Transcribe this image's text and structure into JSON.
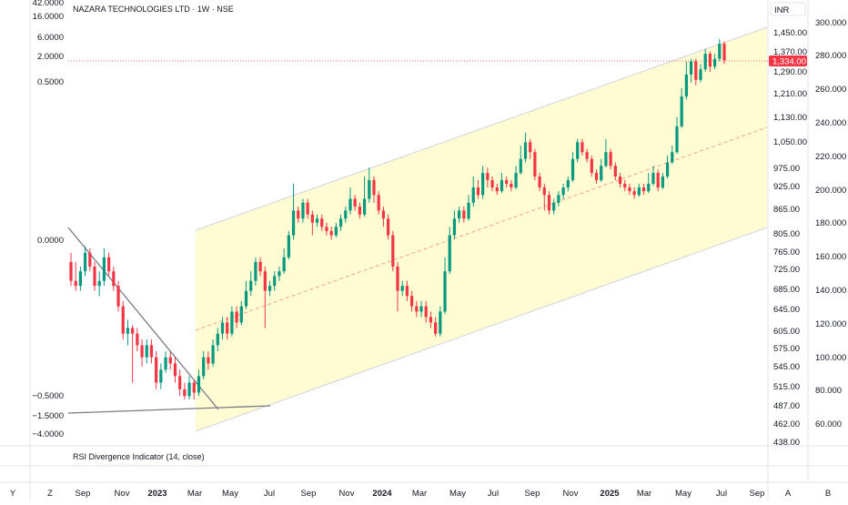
{
  "header": {
    "title": "NAZARA TECHNOLOGIES LTD · 1W · NSE"
  },
  "currency": "INR",
  "last_price_label": "1,334.00",
  "indicator": {
    "label": "RSI Divergence Indicator (14, close)"
  },
  "left_scale": [
    "42.0000",
    "16.0000",
    "6.0000",
    "2.0000",
    "0.5000",
    "0.0000",
    "−0.5000",
    "−1.5000",
    "−4.0000"
  ],
  "right_scale_price": [
    "1,450.00",
    "1,370.00",
    "1,290.00",
    "1,210.00",
    "1,130.00",
    "1,050.00",
    "975.00",
    "925.00",
    "865.00",
    "805.00",
    "765.00",
    "725.00",
    "685.00",
    "645.00",
    "605.00",
    "575.00",
    "545.00",
    "515.00",
    "487.00",
    "462.00",
    "438.00"
  ],
  "right_scale_secondary": [
    "300.000",
    "280.000",
    "260.000",
    "240.000",
    "220.000",
    "200.000",
    "180.000",
    "160.000",
    "140.000",
    "120.000",
    "100.000",
    "80.000",
    "60.000"
  ],
  "time_labels": [
    "Sep",
    "Nov",
    "2023",
    "Mar",
    "May",
    "Jul",
    "Sep",
    "Nov",
    "2024",
    "Mar",
    "May",
    "Jul",
    "Sep",
    "Nov",
    "2025",
    "Mar",
    "May",
    "Jul",
    "Sep"
  ],
  "bottom_buttons": [
    "Y",
    "Z",
    "A",
    "B"
  ],
  "colors": {
    "up": "#089981",
    "down": "#f23645",
    "channel_fill": "#fff9c4",
    "channel_line": "#d1d4dc",
    "midline": "#f7a08a",
    "last_price_bg": "#f23645"
  },
  "chart_data": {
    "type": "candlestick",
    "interval": "1W",
    "y_scale": "log",
    "ylim": [
      438,
      1500
    ],
    "candles": [
      [
        740,
        700,
        760,
        690
      ],
      [
        700,
        690,
        740,
        680
      ],
      [
        690,
        720,
        730,
        680
      ],
      [
        720,
        760,
        775,
        710
      ],
      [
        760,
        730,
        770,
        720
      ],
      [
        730,
        690,
        740,
        680
      ],
      [
        690,
        700,
        720,
        670
      ],
      [
        700,
        750,
        770,
        690
      ],
      [
        750,
        720,
        760,
        710
      ],
      [
        720,
        690,
        730,
        680
      ],
      [
        690,
        650,
        700,
        640
      ],
      [
        650,
        600,
        660,
        590
      ],
      [
        600,
        610,
        625,
        580
      ],
      [
        610,
        600,
        615,
        520
      ],
      [
        600,
        580,
        610,
        570
      ],
      [
        580,
        560,
        590,
        545
      ],
      [
        560,
        580,
        590,
        550
      ],
      [
        580,
        560,
        590,
        550
      ],
      [
        560,
        520,
        570,
        510
      ],
      [
        520,
        540,
        550,
        510
      ],
      [
        540,
        560,
        570,
        535
      ],
      [
        560,
        550,
        570,
        540
      ],
      [
        550,
        530,
        560,
        520
      ],
      [
        530,
        510,
        540,
        500
      ],
      [
        510,
        500,
        520,
        495
      ],
      [
        500,
        520,
        530,
        495
      ],
      [
        520,
        505,
        525,
        495
      ],
      [
        505,
        530,
        540,
        500
      ],
      [
        530,
        560,
        570,
        525
      ],
      [
        560,
        550,
        570,
        540
      ],
      [
        550,
        580,
        590,
        545
      ],
      [
        580,
        600,
        610,
        570
      ],
      [
        600,
        620,
        630,
        590
      ],
      [
        620,
        600,
        630,
        590
      ],
      [
        600,
        640,
        650,
        595
      ],
      [
        640,
        620,
        650,
        610
      ],
      [
        620,
        650,
        660,
        615
      ],
      [
        650,
        680,
        700,
        645
      ],
      [
        680,
        700,
        720,
        670
      ],
      [
        700,
        740,
        750,
        690
      ],
      [
        740,
        720,
        750,
        710
      ],
      [
        720,
        680,
        730,
        610
      ],
      [
        680,
        690,
        700,
        670
      ],
      [
        690,
        710,
        720,
        680
      ],
      [
        710,
        720,
        730,
        700
      ],
      [
        720,
        750,
        770,
        715
      ],
      [
        750,
        800,
        810,
        745
      ],
      [
        800,
        860,
        930,
        790
      ],
      [
        860,
        840,
        870,
        830
      ],
      [
        840,
        880,
        890,
        830
      ],
      [
        880,
        850,
        890,
        840
      ],
      [
        850,
        830,
        860,
        800
      ],
      [
        830,
        840,
        850,
        820
      ],
      [
        840,
        820,
        850,
        810
      ],
      [
        820,
        810,
        830,
        800
      ],
      [
        810,
        800,
        820,
        790
      ],
      [
        800,
        820,
        830,
        795
      ],
      [
        820,
        840,
        850,
        810
      ],
      [
        840,
        860,
        870,
        830
      ],
      [
        860,
        890,
        920,
        850
      ],
      [
        890,
        870,
        900,
        860
      ],
      [
        870,
        850,
        880,
        840
      ],
      [
        850,
        890,
        950,
        845
      ],
      [
        890,
        940,
        975,
        880
      ],
      [
        940,
        900,
        950,
        880
      ],
      [
        900,
        860,
        910,
        850
      ],
      [
        860,
        840,
        870,
        820
      ],
      [
        840,
        800,
        850,
        790
      ],
      [
        800,
        730,
        810,
        720
      ],
      [
        730,
        680,
        740,
        640
      ],
      [
        680,
        690,
        700,
        670
      ],
      [
        690,
        670,
        700,
        660
      ],
      [
        670,
        650,
        680,
        640
      ],
      [
        650,
        640,
        660,
        630
      ],
      [
        640,
        650,
        660,
        630
      ],
      [
        650,
        630,
        660,
        620
      ],
      [
        630,
        620,
        640,
        610
      ],
      [
        620,
        600,
        630,
        595
      ],
      [
        600,
        640,
        650,
        595
      ],
      [
        640,
        720,
        750,
        635
      ],
      [
        720,
        800,
        820,
        715
      ],
      [
        800,
        840,
        860,
        790
      ],
      [
        840,
        860,
        870,
        830
      ],
      [
        860,
        840,
        870,
        830
      ],
      [
        840,
        880,
        900,
        835
      ],
      [
        880,
        920,
        950,
        870
      ],
      [
        920,
        900,
        940,
        890
      ],
      [
        900,
        960,
        980,
        890
      ],
      [
        960,
        940,
        975,
        920
      ],
      [
        940,
        920,
        950,
        910
      ],
      [
        920,
        910,
        930,
        900
      ],
      [
        910,
        940,
        960,
        905
      ],
      [
        940,
        930,
        950,
        920
      ],
      [
        930,
        920,
        940,
        910
      ],
      [
        920,
        960,
        980,
        915
      ],
      [
        960,
        1000,
        1040,
        955
      ],
      [
        1000,
        1050,
        1080,
        990
      ],
      [
        1050,
        1020,
        1060,
        1000
      ],
      [
        1020,
        950,
        1030,
        940
      ],
      [
        950,
        920,
        960,
        910
      ],
      [
        920,
        900,
        930,
        860
      ],
      [
        900,
        860,
        910,
        850
      ],
      [
        860,
        880,
        890,
        850
      ],
      [
        880,
        900,
        910,
        870
      ],
      [
        900,
        920,
        930,
        890
      ],
      [
        920,
        940,
        950,
        910
      ],
      [
        940,
        1000,
        1020,
        935
      ],
      [
        1000,
        1050,
        1060,
        990
      ],
      [
        1050,
        1020,
        1060,
        1010
      ],
      [
        1020,
        1000,
        1030,
        990
      ],
      [
        1000,
        960,
        1010,
        950
      ],
      [
        960,
        940,
        970,
        930
      ],
      [
        940,
        980,
        1000,
        935
      ],
      [
        980,
        1020,
        1060,
        975
      ],
      [
        1020,
        980,
        1030,
        970
      ],
      [
        980,
        950,
        990,
        940
      ],
      [
        950,
        930,
        960,
        920
      ],
      [
        930,
        920,
        940,
        910
      ],
      [
        920,
        910,
        930,
        900
      ],
      [
        910,
        900,
        920,
        890
      ],
      [
        900,
        920,
        930,
        895
      ],
      [
        920,
        910,
        930,
        900
      ],
      [
        910,
        930,
        960,
        905
      ],
      [
        930,
        960,
        980,
        925
      ],
      [
        960,
        920,
        970,
        910
      ],
      [
        920,
        950,
        960,
        915
      ],
      [
        950,
        990,
        1010,
        945
      ],
      [
        990,
        1020,
        1040,
        985
      ],
      [
        1020,
        1100,
        1130,
        1015
      ],
      [
        1100,
        1200,
        1230,
        1095
      ],
      [
        1200,
        1280,
        1330,
        1190
      ],
      [
        1280,
        1330,
        1340,
        1250
      ],
      [
        1330,
        1260,
        1340,
        1240
      ],
      [
        1260,
        1300,
        1320,
        1250
      ],
      [
        1300,
        1360,
        1380,
        1290
      ],
      [
        1360,
        1310,
        1370,
        1290
      ],
      [
        1310,
        1340,
        1360,
        1300
      ],
      [
        1340,
        1400,
        1420,
        1330
      ],
      [
        1400,
        1334,
        1410,
        1320
      ]
    ]
  }
}
